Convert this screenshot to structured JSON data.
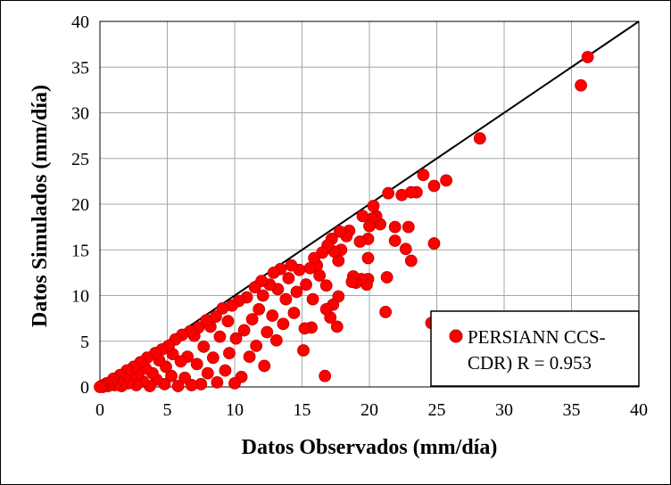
{
  "chart_data": {
    "type": "scatter",
    "xlabel": "Datos Observados (mm/día)",
    "ylabel": "Datos Simulados (mm/día)",
    "xlim": [
      0,
      40
    ],
    "ylim": [
      0,
      40
    ],
    "xticks": [
      0,
      5,
      10,
      15,
      20,
      25,
      30,
      35,
      40
    ],
    "yticks": [
      0,
      5,
      10,
      15,
      20,
      25,
      30,
      35,
      40
    ],
    "grid": true,
    "legend_position": "bottom-right",
    "reference_line": {
      "x": [
        0,
        40
      ],
      "y": [
        0,
        40
      ],
      "color": "#000000"
    },
    "series": [
      {
        "name": "PERSIANN CCS-CDR) R = 0.953",
        "color": "#ff0000",
        "points": [
          [
            36.2,
            36.1
          ],
          [
            35.7,
            33.0
          ],
          [
            28.2,
            27.2
          ],
          [
            25.7,
            22.6
          ],
          [
            24.8,
            22.0
          ],
          [
            24.8,
            15.7
          ],
          [
            24.0,
            23.2
          ],
          [
            23.5,
            21.3
          ],
          [
            23.1,
            21.3
          ],
          [
            22.9,
            17.5
          ],
          [
            23.1,
            13.8
          ],
          [
            22.7,
            15.1
          ],
          [
            22.4,
            21.0
          ],
          [
            21.9,
            17.5
          ],
          [
            21.9,
            16.0
          ],
          [
            21.4,
            21.2
          ],
          [
            21.3,
            12.0
          ],
          [
            21.2,
            8.2
          ],
          [
            20.8,
            17.8
          ],
          [
            20.5,
            18.7
          ],
          [
            20.3,
            19.8
          ],
          [
            20.2,
            18.4
          ],
          [
            20.0,
            17.6
          ],
          [
            19.9,
            16.2
          ],
          [
            19.9,
            14.1
          ],
          [
            19.9,
            11.8
          ],
          [
            19.8,
            11.2
          ],
          [
            19.5,
            18.7
          ],
          [
            19.4,
            11.8
          ],
          [
            19.3,
            15.9
          ],
          [
            19.0,
            11.4
          ],
          [
            18.8,
            12.1
          ],
          [
            18.7,
            11.5
          ],
          [
            18.5,
            17.1
          ],
          [
            18.3,
            16.5
          ],
          [
            17.9,
            15.0
          ],
          [
            17.8,
            17.0
          ],
          [
            17.7,
            13.8
          ],
          [
            17.7,
            9.9
          ],
          [
            17.6,
            6.6
          ],
          [
            17.4,
            14.8
          ],
          [
            17.3,
            9.0
          ],
          [
            17.2,
            16.2
          ],
          [
            17.1,
            7.6
          ],
          [
            16.9,
            15.5
          ],
          [
            16.8,
            11.1
          ],
          [
            16.8,
            8.5
          ],
          [
            16.7,
            1.2
          ],
          [
            16.5,
            14.7
          ],
          [
            16.3,
            12.2
          ],
          [
            16.1,
            13.3
          ],
          [
            15.9,
            14.1
          ],
          [
            15.8,
            9.6
          ],
          [
            15.7,
            6.5
          ],
          [
            15.6,
            13.0
          ],
          [
            15.3,
            11.2
          ],
          [
            15.2,
            6.4
          ],
          [
            15.1,
            4.0
          ],
          [
            14.8,
            12.8
          ],
          [
            14.6,
            10.4
          ],
          [
            14.4,
            8.1
          ],
          [
            14.2,
            13.3
          ],
          [
            14.0,
            11.9
          ],
          [
            13.8,
            9.6
          ],
          [
            13.6,
            6.9
          ],
          [
            13.4,
            12.9
          ],
          [
            13.2,
            10.7
          ],
          [
            13.1,
            5.1
          ],
          [
            12.9,
            12.5
          ],
          [
            12.8,
            7.8
          ],
          [
            12.6,
            11.2
          ],
          [
            12.4,
            6.0
          ],
          [
            12.2,
            2.3
          ],
          [
            12.1,
            10.0
          ],
          [
            12.0,
            11.6
          ],
          [
            11.8,
            8.5
          ],
          [
            11.6,
            4.5
          ],
          [
            11.5,
            10.9
          ],
          [
            11.3,
            7.4
          ],
          [
            11.1,
            3.3
          ],
          [
            10.9,
            9.8
          ],
          [
            10.7,
            6.2
          ],
          [
            10.5,
            1.1
          ],
          [
            10.3,
            9.4
          ],
          [
            10.1,
            5.3
          ],
          [
            10.0,
            0.4
          ],
          [
            9.8,
            8.9
          ],
          [
            9.6,
            3.7
          ],
          [
            9.5,
            7.2
          ],
          [
            9.3,
            1.8
          ],
          [
            9.1,
            8.6
          ],
          [
            8.9,
            5.5
          ],
          [
            8.7,
            0.5
          ],
          [
            8.6,
            7.7
          ],
          [
            8.4,
            3.2
          ],
          [
            8.2,
            6.6
          ],
          [
            8.0,
            1.5
          ],
          [
            7.9,
            7.3
          ],
          [
            7.7,
            4.4
          ],
          [
            7.5,
            0.3
          ],
          [
            7.3,
            6.5
          ],
          [
            7.2,
            2.5
          ],
          [
            7.0,
            5.6
          ],
          [
            6.8,
            0.2
          ],
          [
            6.7,
            6.1
          ],
          [
            6.5,
            3.3
          ],
          [
            6.3,
            1.0
          ],
          [
            6.1,
            5.7
          ],
          [
            6.0,
            2.8
          ],
          [
            5.8,
            0.1
          ],
          [
            5.6,
            5.2
          ],
          [
            5.4,
            3.6
          ],
          [
            5.3,
            1.2
          ],
          [
            5.1,
            4.5
          ],
          [
            4.9,
            2.2
          ],
          [
            4.8,
            0.3
          ],
          [
            4.6,
            4.1
          ],
          [
            4.4,
            2.9
          ],
          [
            4.2,
            0.8
          ],
          [
            4.1,
            3.7
          ],
          [
            3.9,
            1.5
          ],
          [
            3.7,
            0.1
          ],
          [
            3.5,
            3.2
          ],
          [
            3.4,
            2.0
          ],
          [
            3.2,
            0.6
          ],
          [
            3.0,
            2.7
          ],
          [
            2.8,
            1.4
          ],
          [
            2.7,
            0.2
          ],
          [
            2.5,
            2.2
          ],
          [
            2.3,
            1.0
          ],
          [
            2.1,
            0.4
          ],
          [
            2.0,
            1.8
          ],
          [
            1.8,
            0.9
          ],
          [
            1.6,
            0.1
          ],
          [
            1.5,
            1.3
          ],
          [
            1.3,
            0.6
          ],
          [
            1.1,
            0.2
          ],
          [
            1.0,
            0.9
          ],
          [
            0.8,
            0.5
          ],
          [
            0.6,
            0.1
          ],
          [
            0.5,
            0.4
          ],
          [
            0.3,
            0.2
          ],
          [
            0.2,
            0.0
          ],
          [
            0.1,
            0.1
          ],
          [
            0.0,
            0.0
          ],
          [
            24.6,
            7.0
          ]
        ]
      }
    ]
  }
}
